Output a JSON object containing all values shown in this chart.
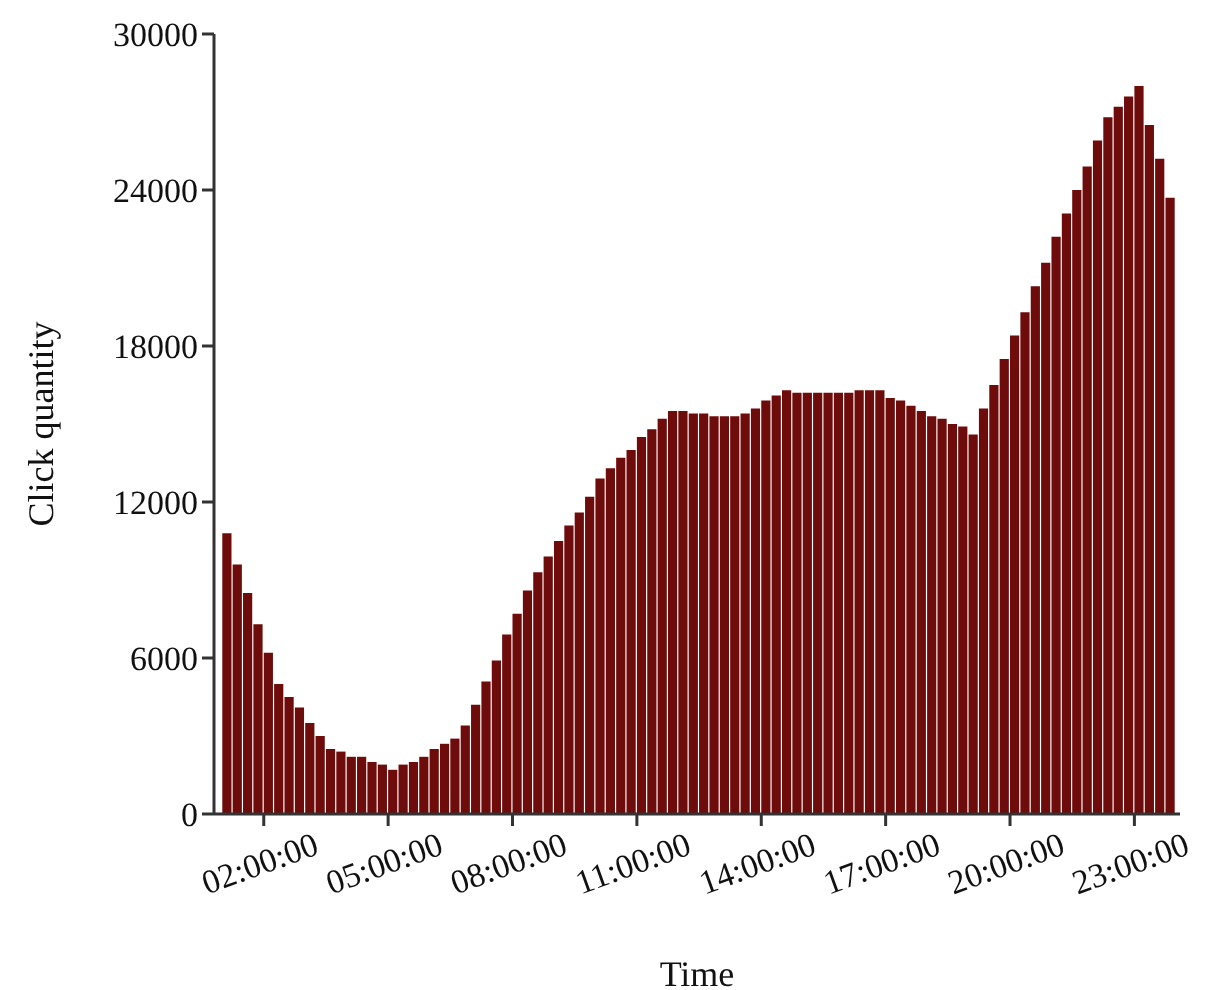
{
  "chart_data": {
    "type": "bar",
    "xlabel": "Time",
    "ylabel": "Click quantity",
    "color": "#6e0b0b",
    "x": [
      1.125,
      1.375,
      1.625,
      1.875,
      2.125,
      2.375,
      2.625,
      2.875,
      3.125,
      3.375,
      3.625,
      3.875,
      4.125,
      4.375,
      4.625,
      4.875,
      5.125,
      5.375,
      5.625,
      5.875,
      6.125,
      6.375,
      6.625,
      6.875,
      7.125,
      7.375,
      7.625,
      7.875,
      8.125,
      8.375,
      8.625,
      8.875,
      9.125,
      9.375,
      9.625,
      9.875,
      10.125,
      10.375,
      10.625,
      10.875,
      11.125,
      11.375,
      11.625,
      11.875,
      12.125,
      12.375,
      12.625,
      12.875,
      13.125,
      13.375,
      13.625,
      13.875,
      14.125,
      14.375,
      14.625,
      14.875,
      15.125,
      15.375,
      15.625,
      15.875,
      16.125,
      16.375,
      16.625,
      16.875,
      17.125,
      17.375,
      17.625,
      17.875,
      18.125,
      18.375,
      18.625,
      18.875,
      19.125,
      19.375,
      19.625,
      19.875,
      20.125,
      20.375,
      20.625,
      20.875,
      21.125,
      21.375,
      21.625,
      21.875,
      22.125,
      22.375,
      22.625,
      22.875,
      23.125,
      23.375,
      23.625,
      23.875
    ],
    "values": [
      10800,
      9600,
      8500,
      7300,
      6200,
      5000,
      4500,
      4100,
      3500,
      3000,
      2500,
      2400,
      2200,
      2200,
      2000,
      1900,
      1700,
      1900,
      2000,
      2200,
      2500,
      2700,
      2900,
      3400,
      4200,
      5100,
      5900,
      6900,
      7700,
      8600,
      9300,
      9900,
      10500,
      11100,
      11600,
      12200,
      12900,
      13300,
      13700,
      14000,
      14500,
      14800,
      15200,
      15500,
      15500,
      15400,
      15400,
      15300,
      15300,
      15300,
      15400,
      15600,
      15900,
      16100,
      16300,
      16200,
      16200,
      16200,
      16200,
      16200,
      16200,
      16300,
      16300,
      16300,
      16000,
      15900,
      15700,
      15500,
      15300,
      15200,
      15000,
      14900,
      14600,
      15600,
      16500,
      17500,
      18400,
      19300,
      20300,
      21200,
      22200,
      23100,
      24000,
      24900,
      25900,
      26800,
      27200,
      27600,
      28000,
      26500,
      25200,
      23700
    ],
    "xlim": [
      0.8,
      24.1
    ],
    "xticks": [
      {
        "value": 2,
        "label": "02:00:00"
      },
      {
        "value": 5,
        "label": "05:00:00"
      },
      {
        "value": 8,
        "label": "08:00:00"
      },
      {
        "value": 11,
        "label": "11:00:00"
      },
      {
        "value": 14,
        "label": "14:00:00"
      },
      {
        "value": 17,
        "label": "17:00:00"
      },
      {
        "value": 20,
        "label": "20:00:00"
      },
      {
        "value": 23,
        "label": "23:00:00"
      }
    ],
    "ylim": [
      0,
      30000
    ],
    "yticks": [
      0,
      6000,
      12000,
      18000,
      24000,
      30000
    ]
  }
}
